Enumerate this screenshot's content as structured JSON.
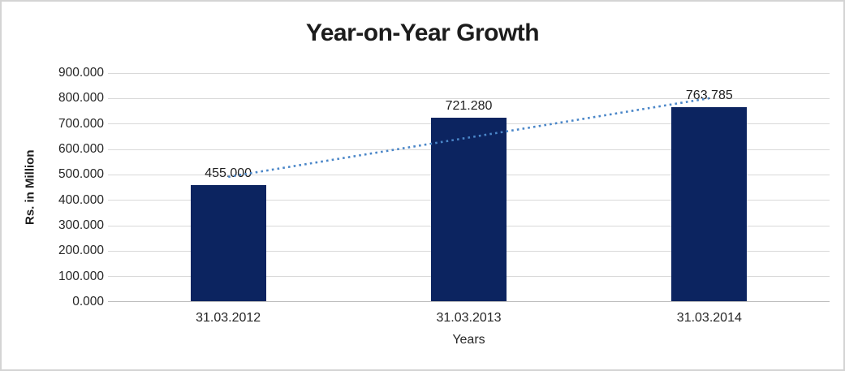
{
  "frame": {
    "background_color": "#ffffff",
    "border_color": "#d4d4d4"
  },
  "chart_data": {
    "type": "bar",
    "title": "Year-on-Year Growth",
    "xlabel": "Years",
    "ylabel": "Rs. in Million",
    "categories": [
      "31.03.2012",
      "31.03.2013",
      "31.03.2014"
    ],
    "values": [
      455.0,
      721.28,
      763.785
    ],
    "value_labels": [
      "455.000",
      "721.280",
      "763.785"
    ],
    "ylim": [
      0,
      900
    ],
    "ytick_step": 100,
    "ytick_labels": [
      "0.000",
      "100.000",
      "200.000",
      "300.000",
      "400.000",
      "500.000",
      "600.000",
      "700.000",
      "800.000",
      "900.000"
    ],
    "grid": true,
    "legend_position": "none",
    "bar_color": "#0c2460",
    "gridline_color": "#d9d9d9",
    "axis_line_color": "#bdbdbd",
    "text_color": "#262626",
    "trendline": {
      "type": "linear",
      "style": "dotted",
      "color": "#4a86c8",
      "start_value": 492,
      "end_value": 801
    }
  }
}
